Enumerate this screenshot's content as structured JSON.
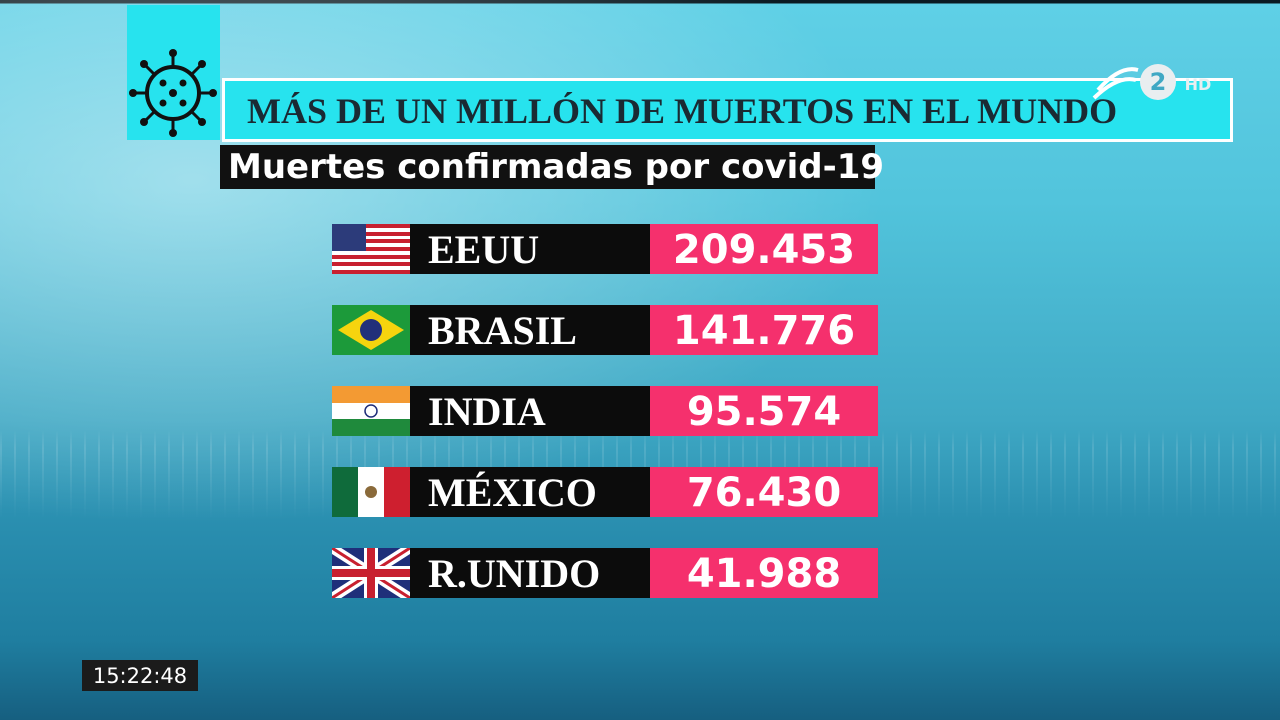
{
  "header": {
    "title": "MÁS DE UN MILLÓN DE MUERTOS EN EL MUNDO",
    "subtitle": "Muertes confirmadas por covid-19"
  },
  "table": {
    "rows": [
      [
        "EEUU",
        "209.453"
      ],
      [
        "BRASIL",
        "141.776"
      ],
      [
        "INDIA",
        "95.574"
      ],
      [
        "MÉXICO",
        "76.430"
      ],
      [
        "R.UNIDO",
        "41.988"
      ]
    ]
  },
  "clock": "15:22:48",
  "logo": {
    "channel": "2",
    "quality": "HD"
  }
}
